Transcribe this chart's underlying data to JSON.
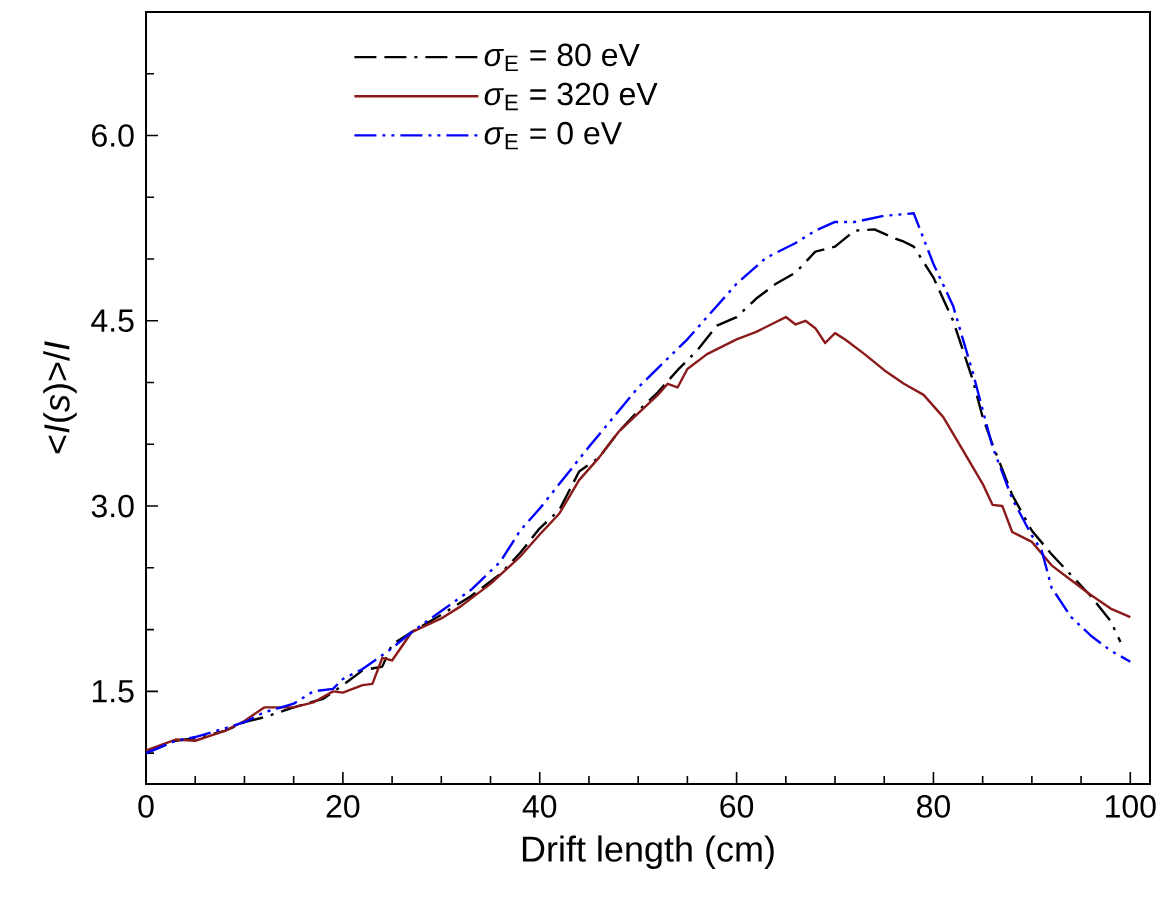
{
  "chart_data": {
    "type": "line",
    "xlabel": "Drift length (cm)",
    "ylabel": "<*I*(*s*)>/*I*",
    "xlim": [
      0,
      102
    ],
    "ylim": [
      0.75,
      7.0
    ],
    "xticks": [
      0,
      {
        "value": 5,
        "label": null
      },
      {
        "value": 10,
        "label": null
      },
      {
        "value": 15,
        "label": null
      },
      20,
      {
        "value": 25,
        "label": null
      },
      {
        "value": 30,
        "label": null
      },
      {
        "value": 35,
        "label": null
      },
      40,
      {
        "value": 45,
        "label": null
      },
      {
        "value": 50,
        "label": null
      },
      {
        "value": 55,
        "label": null
      },
      60,
      {
        "value": 65,
        "label": null
      },
      {
        "value": 70,
        "label": null
      },
      {
        "value": 75,
        "label": null
      },
      80,
      {
        "value": 85,
        "label": null
      },
      {
        "value": 90,
        "label": null
      },
      {
        "value": 95,
        "label": null
      },
      100
    ],
    "yticks": [
      {
        "value": 1.0,
        "label": null
      },
      1.5,
      {
        "value": 2.0,
        "label": null
      },
      {
        "value": 2.5,
        "label": null
      },
      {
        "value": 3.0,
        "label": "3.0"
      },
      {
        "value": 3.5,
        "label": null
      },
      {
        "value": 4.0,
        "label": null
      },
      4.5,
      {
        "value": 5.0,
        "label": null
      },
      {
        "value": 5.5,
        "label": null
      },
      {
        "value": 6.0,
        "label": "6.0"
      },
      {
        "value": 6.5,
        "label": null
      }
    ],
    "legend": "top left",
    "grid": false,
    "marker": "none",
    "series": [
      {
        "name": "*σ*$_{E}$ = 80 eV",
        "color": "#000000",
        "line_style": "dashed",
        "x": [
          0,
          3,
          5,
          8,
          10,
          12,
          15,
          18,
          20,
          22,
          24,
          25,
          27,
          30,
          33,
          36,
          38,
          40,
          42,
          44,
          46,
          48,
          50,
          52,
          54,
          56,
          58,
          60,
          62,
          64,
          66,
          68,
          70,
          72,
          74,
          76,
          77,
          78,
          80,
          82,
          84,
          85,
          86,
          88,
          90,
          92,
          94,
          96,
          98,
          99
        ],
        "values": [
          1.0,
          1.1,
          1.12,
          1.18,
          1.25,
          1.29,
          1.37,
          1.44,
          1.55,
          1.67,
          1.7,
          1.88,
          1.98,
          2.12,
          2.27,
          2.45,
          2.62,
          2.82,
          2.97,
          3.28,
          3.39,
          3.6,
          3.77,
          3.92,
          4.1,
          4.26,
          4.46,
          4.53,
          4.68,
          4.8,
          4.89,
          5.06,
          5.1,
          5.23,
          5.24,
          5.17,
          5.14,
          5.1,
          4.85,
          4.5,
          4.02,
          3.72,
          3.5,
          3.09,
          2.8,
          2.61,
          2.44,
          2.27,
          2.07,
          1.9
        ]
      },
      {
        "name": "*σ*$_{E}$ = 320 eV",
        "color": "#8b1a1a",
        "line_style": "solid",
        "x": [
          0,
          3,
          5,
          8,
          10,
          12,
          15,
          17,
          19,
          20,
          22,
          23,
          24,
          25,
          27,
          30,
          32,
          35,
          38,
          40,
          42,
          44,
          46,
          48,
          50,
          52,
          53,
          54,
          55,
          57,
          60,
          62,
          64,
          65,
          66,
          67,
          68,
          69,
          70,
          71,
          73,
          75,
          77,
          79,
          81,
          83,
          85,
          86,
          87,
          88,
          90,
          92,
          94,
          96,
          98,
          100
        ],
        "values": [
          1.02,
          1.11,
          1.1,
          1.18,
          1.26,
          1.37,
          1.37,
          1.41,
          1.5,
          1.49,
          1.55,
          1.56,
          1.77,
          1.75,
          1.98,
          2.09,
          2.19,
          2.37,
          2.59,
          2.77,
          2.94,
          3.21,
          3.39,
          3.6,
          3.75,
          3.9,
          3.99,
          3.96,
          4.11,
          4.23,
          4.35,
          4.41,
          4.49,
          4.53,
          4.47,
          4.5,
          4.44,
          4.32,
          4.4,
          4.35,
          4.23,
          4.1,
          3.99,
          3.9,
          3.72,
          3.45,
          3.18,
          3.01,
          3.0,
          2.79,
          2.71,
          2.52,
          2.4,
          2.28,
          2.17,
          2.1
        ]
      },
      {
        "name": "*σ*$_{E}$ = 0 eV",
        "color": "#0000ff",
        "line_style": "dotted",
        "x": [
          0,
          3,
          5,
          8,
          10,
          12,
          15,
          17,
          19,
          20,
          22,
          25,
          27,
          30,
          33,
          36,
          38,
          40,
          45,
          50,
          55,
          58,
          60,
          63,
          66,
          68,
          70,
          72,
          75,
          78,
          80,
          82,
          84,
          86,
          88,
          90,
          91,
          92,
          94,
          96,
          98,
          100
        ],
        "values": [
          1.0,
          1.1,
          1.13,
          1.2,
          1.25,
          1.33,
          1.4,
          1.5,
          1.52,
          1.6,
          1.68,
          1.85,
          1.98,
          2.15,
          2.32,
          2.55,
          2.8,
          2.98,
          3.48,
          3.96,
          4.35,
          4.62,
          4.8,
          5.01,
          5.13,
          5.23,
          5.3,
          5.3,
          5.35,
          5.37,
          4.96,
          4.62,
          4.08,
          3.48,
          3.06,
          2.76,
          2.64,
          2.34,
          2.1,
          1.95,
          1.83,
          1.74
        ]
      }
    ]
  }
}
